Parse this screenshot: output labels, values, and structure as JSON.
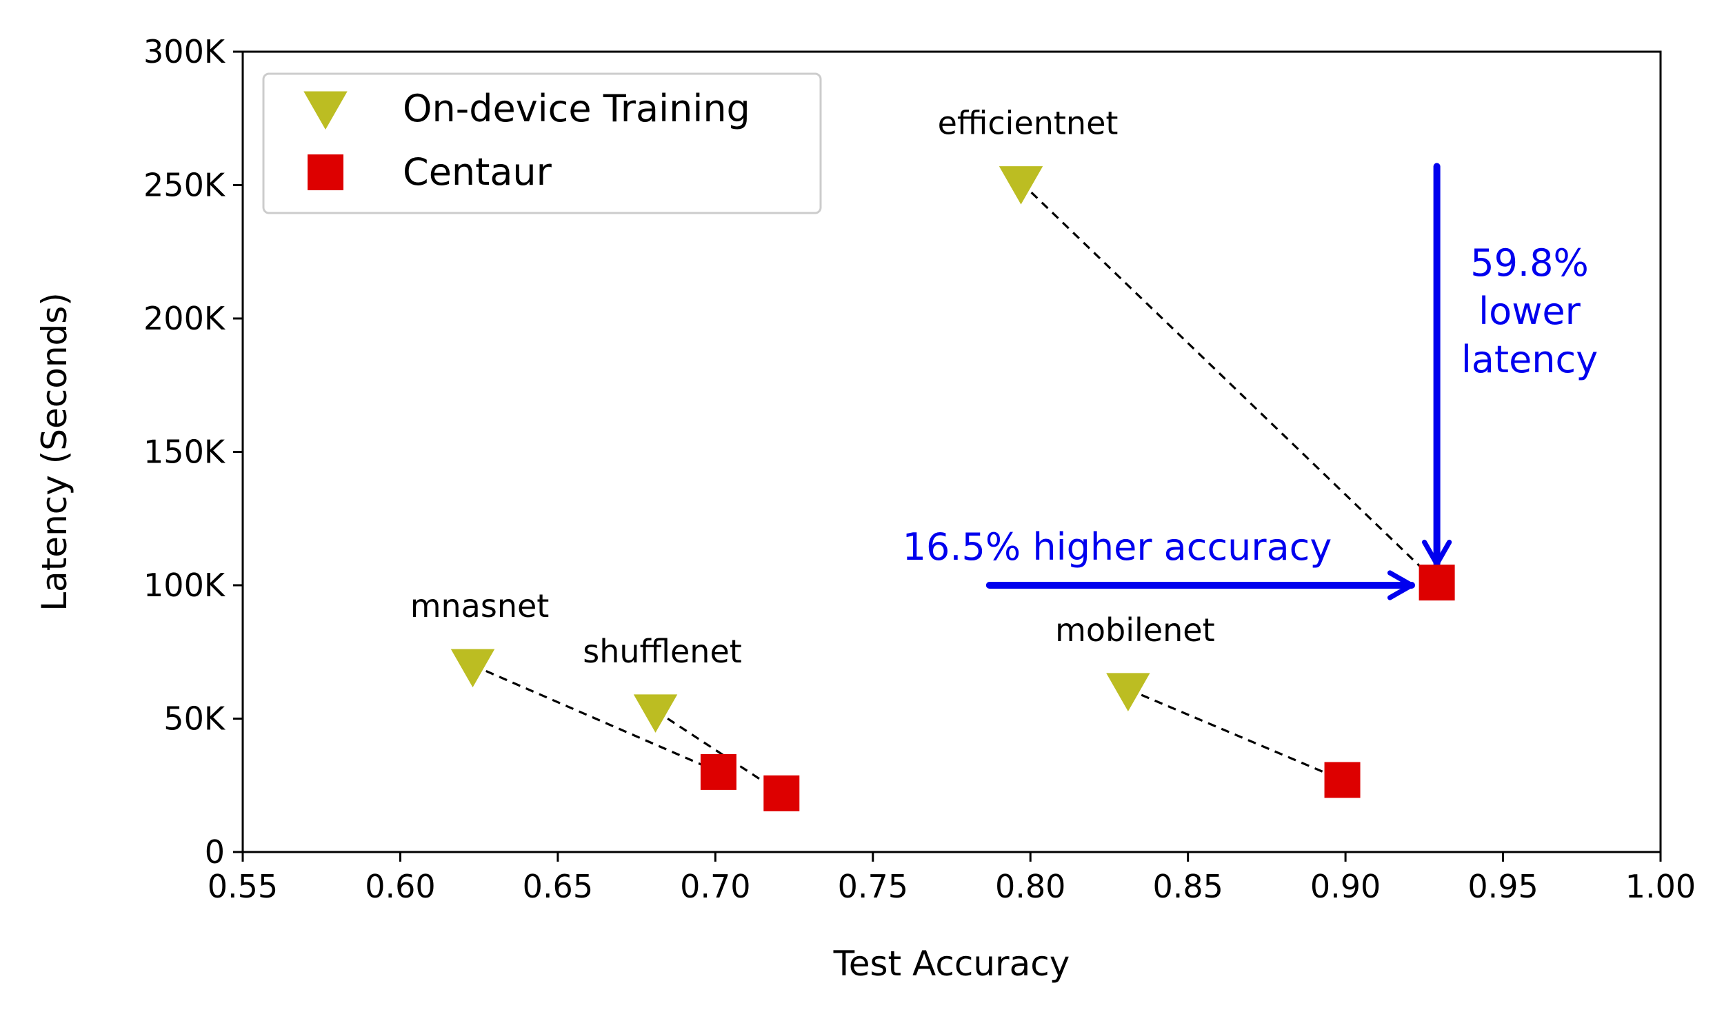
{
  "chart_data": {
    "type": "scatter",
    "title": "",
    "xlabel": "Test Accuracy",
    "ylabel": "Latency (Seconds)",
    "xlim": [
      0.55,
      1.0
    ],
    "ylim": [
      0,
      300000
    ],
    "x_ticks": [
      0.55,
      0.6,
      0.65,
      0.7,
      0.75,
      0.8,
      0.85,
      0.9,
      0.95,
      1.0
    ],
    "x_tick_labels": [
      "0.55",
      "0.60",
      "0.65",
      "0.70",
      "0.75",
      "0.80",
      "0.85",
      "0.90",
      "0.95",
      "1.00"
    ],
    "y_ticks": [
      0,
      50000,
      100000,
      150000,
      200000,
      250000,
      300000
    ],
    "y_tick_labels": [
      "0",
      "50K",
      "100K",
      "150K",
      "200K",
      "250K",
      "300K"
    ],
    "grid": false,
    "legend_position": "top-left",
    "series": [
      {
        "name": "On-device Training",
        "marker": "triangle-down",
        "color": "#bcbd22",
        "points": [
          {
            "label": "efficientnet",
            "x": 0.797,
            "y": 251000
          },
          {
            "label": "mnasnet",
            "x": 0.623,
            "y": 70000
          },
          {
            "label": "shufflenet",
            "x": 0.681,
            "y": 53000
          },
          {
            "label": "mobilenet",
            "x": 0.831,
            "y": 61000
          }
        ]
      },
      {
        "name": "Centaur",
        "marker": "square",
        "color": "#dd0000",
        "points": [
          {
            "label": "efficientnet",
            "x": 0.929,
            "y": 101000
          },
          {
            "label": "mnasnet",
            "x": 0.701,
            "y": 30000
          },
          {
            "label": "shufflenet",
            "x": 0.721,
            "y": 22000
          },
          {
            "label": "mobilenet",
            "x": 0.899,
            "y": 27000
          }
        ]
      }
    ],
    "annotations": [
      {
        "text": "16.5% higher accuracy",
        "color": "#0000ee"
      },
      {
        "text_lines": [
          "59.8%",
          "lower",
          "latency"
        ],
        "color": "#0000ee"
      }
    ],
    "arrows": [
      {
        "name": "accuracy-arrow",
        "from": [
          0.787,
          100000
        ],
        "to": [
          0.921,
          100000
        ],
        "color": "#0000ee"
      },
      {
        "name": "latency-arrow",
        "from": [
          0.929,
          257000
        ],
        "to": [
          0.929,
          108000
        ],
        "color": "#0000ee"
      }
    ]
  }
}
